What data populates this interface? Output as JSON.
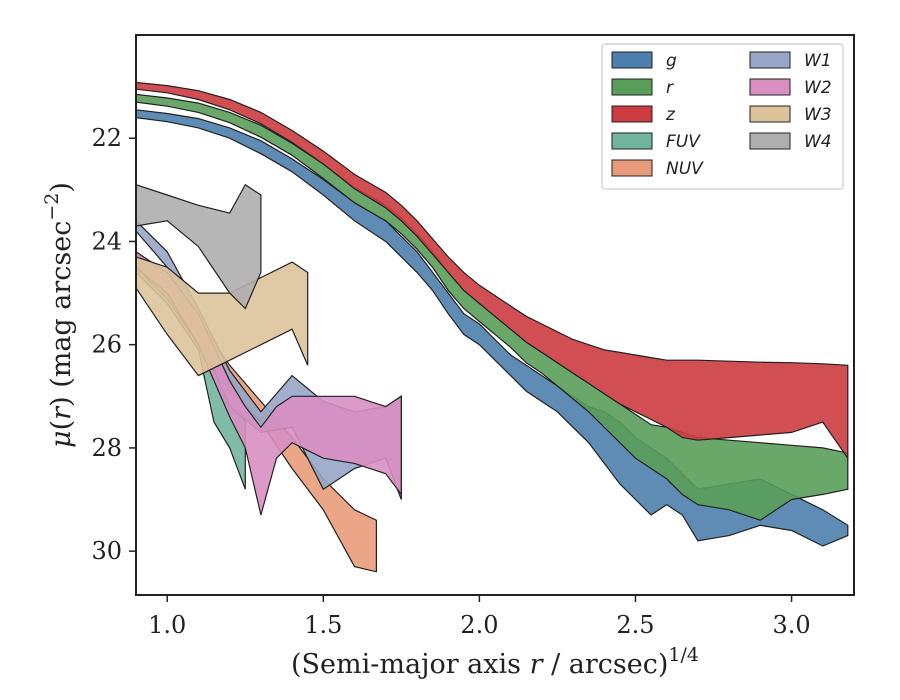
{
  "chart_data": {
    "type": "area",
    "xlabel_parts": [
      "(Semi-major axis ",
      "r",
      " / arcsec)",
      "1/4"
    ],
    "ylabel_parts": [
      "μ(",
      "r",
      ") (mag arcsec",
      "−2",
      ")"
    ],
    "xlim": [
      0.9,
      3.2
    ],
    "ylim": [
      30.85,
      20.0
    ],
    "y_inverted": true,
    "xticks": [
      1.0,
      1.5,
      2.0,
      2.5,
      3.0
    ],
    "xtick_labels": [
      "1.0",
      "1.5",
      "2.0",
      "2.5",
      "3.0"
    ],
    "yticks": [
      22,
      24,
      26,
      28,
      30
    ],
    "ytick_labels": [
      "22",
      "24",
      "26",
      "28",
      "30"
    ],
    "grid": false,
    "legend_placement": "top-right",
    "legend_columns": 2,
    "series": [
      {
        "name": "g",
        "color": "#4c7fac",
        "x": [
          0.9,
          1.0,
          1.1,
          1.2,
          1.3,
          1.4,
          1.5,
          1.6,
          1.7,
          1.75,
          1.8,
          1.85,
          1.9,
          1.95,
          2.0,
          2.05,
          2.1,
          2.15,
          2.2,
          2.25,
          2.3,
          2.35,
          2.4,
          2.45,
          2.5,
          2.55,
          2.6,
          2.65,
          2.7,
          2.8,
          2.9,
          3.0,
          3.1,
          3.18
        ],
        "lower": [
          21.45,
          21.52,
          21.62,
          21.8,
          22.05,
          22.4,
          22.8,
          23.25,
          23.6,
          23.9,
          24.2,
          24.6,
          25.0,
          25.4,
          25.6,
          25.9,
          26.2,
          26.4,
          26.6,
          26.8,
          27.0,
          27.2,
          27.3,
          27.5,
          27.8,
          28.0,
          28.2,
          28.5,
          28.8,
          28.7,
          28.6,
          28.9,
          29.2,
          29.5
        ],
        "upper": [
          21.6,
          21.68,
          21.8,
          22.0,
          22.3,
          22.65,
          23.1,
          23.6,
          24.0,
          24.3,
          24.6,
          24.95,
          25.4,
          25.8,
          26.0,
          26.3,
          26.6,
          26.9,
          27.1,
          27.3,
          27.6,
          27.9,
          28.3,
          28.7,
          29.0,
          29.3,
          29.1,
          29.3,
          29.8,
          29.7,
          29.5,
          29.6,
          29.9,
          29.7
        ]
      },
      {
        "name": "r",
        "color": "#5a9e5a",
        "x": [
          0.9,
          1.0,
          1.1,
          1.2,
          1.3,
          1.4,
          1.5,
          1.6,
          1.7,
          1.75,
          1.8,
          1.85,
          1.9,
          1.95,
          2.0,
          2.05,
          2.1,
          2.15,
          2.2,
          2.25,
          2.3,
          2.35,
          2.4,
          2.45,
          2.5,
          2.55,
          2.6,
          2.65,
          2.7,
          2.8,
          2.9,
          3.0,
          3.1,
          3.18
        ],
        "lower": [
          21.15,
          21.22,
          21.32,
          21.5,
          21.75,
          22.1,
          22.5,
          22.95,
          23.3,
          23.55,
          23.85,
          24.2,
          24.6,
          24.95,
          25.2,
          25.45,
          25.7,
          25.95,
          26.15,
          26.35,
          26.55,
          26.75,
          26.95,
          27.15,
          27.35,
          27.55,
          27.6,
          27.7,
          27.8,
          27.85,
          27.9,
          27.95,
          28.0,
          28.1
        ],
        "upper": [
          21.3,
          21.38,
          21.5,
          21.7,
          21.98,
          22.33,
          22.78,
          23.25,
          23.6,
          23.85,
          24.15,
          24.5,
          24.95,
          25.3,
          25.55,
          25.8,
          26.05,
          26.35,
          26.55,
          26.8,
          27.05,
          27.3,
          27.6,
          27.9,
          28.2,
          28.4,
          28.6,
          28.9,
          29.1,
          29.2,
          29.4,
          29.0,
          28.9,
          28.8
        ]
      },
      {
        "name": "z",
        "color": "#cc3b40",
        "x": [
          0.9,
          1.0,
          1.1,
          1.2,
          1.3,
          1.4,
          1.5,
          1.6,
          1.7,
          1.75,
          1.8,
          1.85,
          1.9,
          1.95,
          2.0,
          2.05,
          2.1,
          2.15,
          2.2,
          2.25,
          2.3,
          2.35,
          2.4,
          2.45,
          2.5,
          2.55,
          2.6,
          2.65,
          2.7,
          2.8,
          2.9,
          3.0,
          3.1,
          3.18
        ],
        "lower": [
          20.92,
          20.98,
          21.08,
          21.25,
          21.5,
          21.85,
          22.25,
          22.7,
          23.05,
          23.3,
          23.6,
          23.95,
          24.3,
          24.6,
          24.85,
          25.05,
          25.25,
          25.45,
          25.6,
          25.75,
          25.9,
          26.0,
          26.1,
          26.15,
          26.2,
          26.25,
          26.3,
          26.3,
          26.3,
          26.32,
          26.34,
          26.35,
          26.37,
          26.4
        ],
        "upper": [
          21.05,
          21.12,
          21.25,
          21.45,
          21.72,
          22.08,
          22.5,
          22.98,
          23.35,
          23.6,
          23.9,
          24.25,
          24.6,
          24.95,
          25.2,
          25.45,
          25.7,
          25.95,
          26.15,
          26.35,
          26.55,
          26.75,
          26.95,
          27.15,
          27.3,
          27.45,
          27.6,
          27.8,
          27.85,
          27.8,
          27.75,
          27.7,
          27.5,
          28.2
        ]
      },
      {
        "name": "FUV",
        "color": "#72b59d",
        "x": [
          0.9,
          1.0,
          1.1,
          1.15,
          1.2,
          1.25
        ],
        "lower": [
          24.3,
          24.8,
          25.6,
          26.3,
          26.9,
          27.5
        ],
        "upper": [
          24.6,
          25.2,
          26.1,
          27.5,
          28.0,
          28.8
        ]
      },
      {
        "name": "NUV",
        "color": "#e99c7b",
        "x": [
          0.9,
          1.0,
          1.1,
          1.2,
          1.3,
          1.4,
          1.5,
          1.6,
          1.67
        ],
        "lower": [
          24.2,
          24.7,
          25.5,
          26.4,
          27.1,
          27.8,
          28.6,
          29.2,
          29.4
        ],
        "upper": [
          24.5,
          25.1,
          26.0,
          26.9,
          27.5,
          28.4,
          29.2,
          30.3,
          30.4
        ]
      },
      {
        "name": "W1",
        "color": "#97a6c6",
        "x": [
          0.9,
          1.0,
          1.1,
          1.2,
          1.3,
          1.4,
          1.5,
          1.6,
          1.7,
          1.75
        ],
        "lower": [
          23.6,
          24.2,
          25.3,
          26.5,
          27.3,
          26.6,
          27.1,
          27.3,
          27.2,
          27.0
        ],
        "upper": [
          23.8,
          24.5,
          25.8,
          27.2,
          27.7,
          27.6,
          28.8,
          28.4,
          28.2,
          29.0
        ]
      },
      {
        "name": "W2",
        "color": "#d88fc2",
        "x": [
          0.9,
          1.0,
          1.1,
          1.2,
          1.25,
          1.3,
          1.35,
          1.4,
          1.5,
          1.6,
          1.7,
          1.75
        ],
        "lower": [
          24.2,
          24.6,
          25.4,
          26.7,
          27.2,
          27.6,
          27.2,
          27.0,
          27.0,
          27.0,
          27.2,
          27.0
        ],
        "upper": [
          24.5,
          25.0,
          26.0,
          27.4,
          28.0,
          29.3,
          28.2,
          27.9,
          28.2,
          28.3,
          28.5,
          28.9
        ]
      },
      {
        "name": "W3",
        "color": "#ddc39b",
        "x": [
          0.9,
          1.0,
          1.1,
          1.2,
          1.3,
          1.4,
          1.45
        ],
        "lower": [
          24.3,
          24.5,
          25.0,
          25.0,
          24.7,
          24.4,
          24.6
        ],
        "upper": [
          24.9,
          25.8,
          26.6,
          26.3,
          26.0,
          25.7,
          26.4
        ]
      },
      {
        "name": "W4",
        "color": "#aeaeae",
        "x": [
          0.9,
          1.0,
          1.1,
          1.2,
          1.25,
          1.3
        ],
        "lower": [
          22.9,
          23.1,
          23.3,
          23.45,
          22.9,
          23.1
        ],
        "upper": [
          23.7,
          23.6,
          24.1,
          25.0,
          25.3,
          24.6
        ]
      }
    ]
  }
}
